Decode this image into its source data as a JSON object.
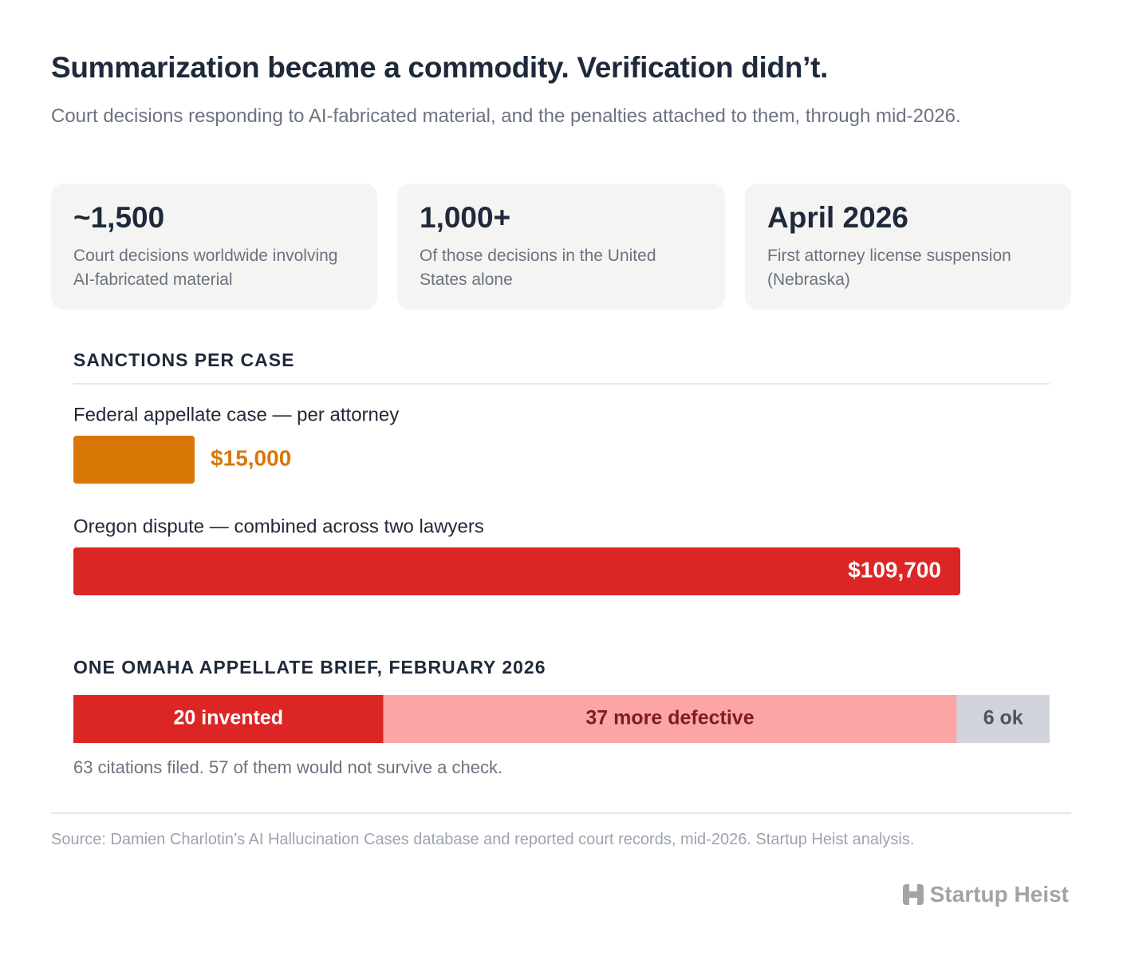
{
  "header": {
    "title": "Summarization became a commodity. Verification didn’t.",
    "subtitle": "Court decisions responding to AI-fabricated material, and the penalties attached to them, through mid-2026."
  },
  "stats": [
    {
      "value": "~1,500",
      "label": "Court decisions worldwide involving AI-fabricated material"
    },
    {
      "value": "1,000+",
      "label": "Of those decisions in the United States alone"
    },
    {
      "value": "April 2026",
      "label": "First attorney license suspension (Nebraska)"
    }
  ],
  "chart_data": [
    {
      "type": "bar",
      "title": "SANCTIONS PER CASE",
      "categories": [
        "Federal appellate case — per attorney",
        "Oregon dispute — combined across two lawyers"
      ],
      "values": [
        15000,
        109700
      ],
      "value_labels": [
        "$15,000",
        "$109,700"
      ],
      "colors": [
        "#d97706",
        "#dc2626"
      ]
    },
    {
      "type": "stacked-bar",
      "title": "ONE OMAHA APPELLATE BRIEF, FEBRUARY 2026",
      "series": [
        {
          "color": "#dc2626",
          "text_color": "#ffffff",
          "values": [
            20
          ],
          "value_labels": [
            "20 invented"
          ]
        },
        {
          "color": "#fca5a5",
          "text_color": "#7f1d1d",
          "values": [
            37
          ],
          "value_labels": [
            "37 more defective"
          ]
        },
        {
          "color": "#d1d5db",
          "text_color": "#4b5563",
          "values": [
            6
          ],
          "value_labels": [
            "6 ok"
          ]
        }
      ],
      "note": "63 citations filed. 57 of them would not survive a check."
    }
  ],
  "source": "Source: Damien Charlotin’s AI Hallucination Cases database and reported court records, mid-2026. Startup Heist analysis.",
  "brand": "Startup Heist"
}
